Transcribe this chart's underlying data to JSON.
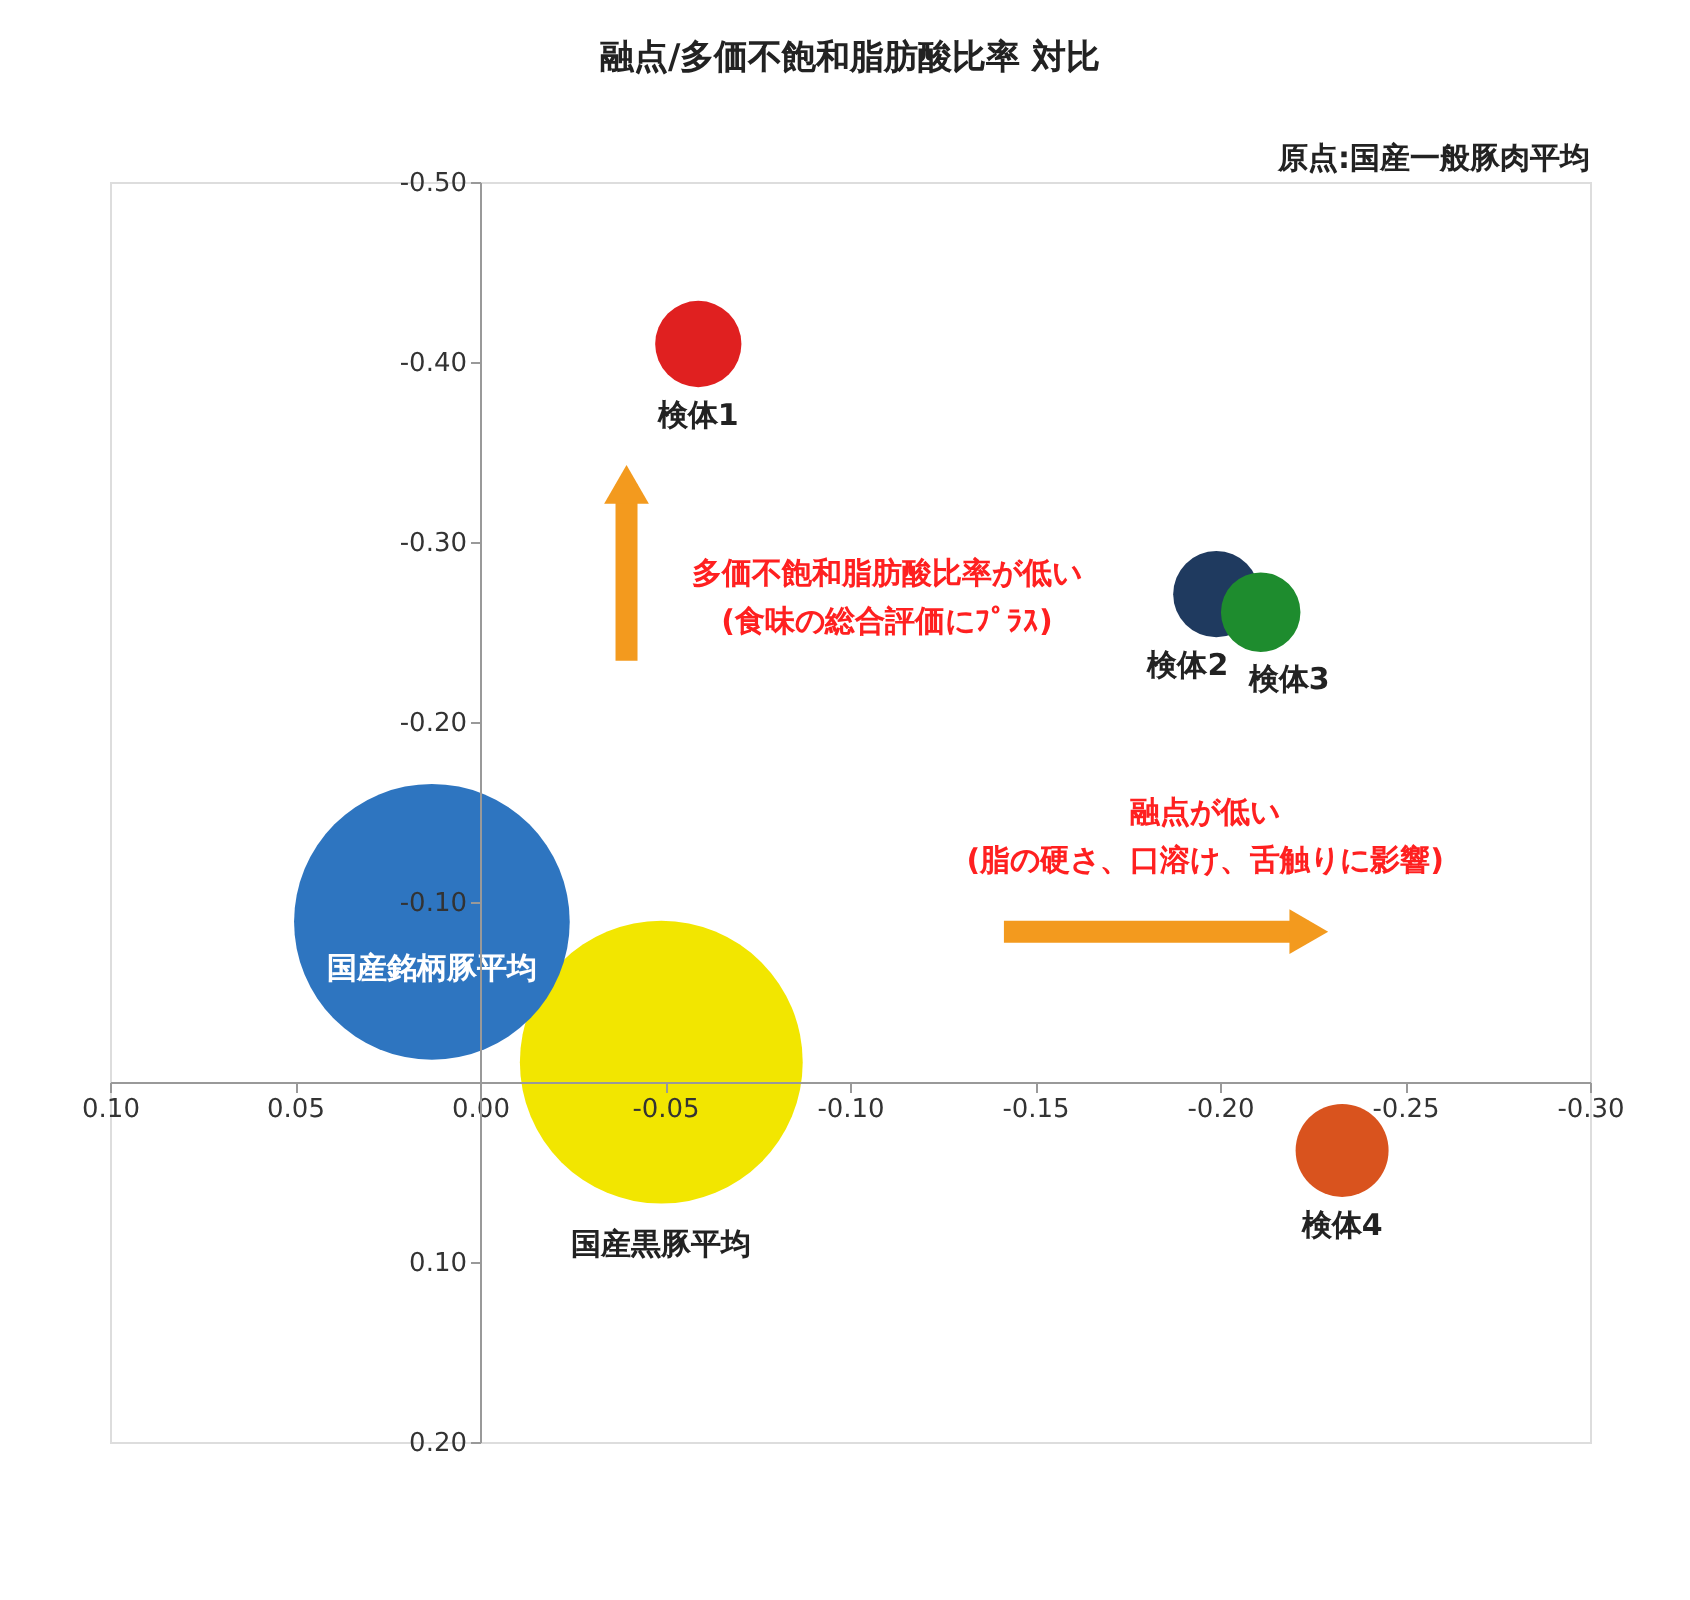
{
  "chart_data": {
    "type": "bubble",
    "title": "融点/多価不飽和脂肪酸比率  対比",
    "xlim": [
      0.1,
      -0.3
    ],
    "ylim": [
      0.2,
      -0.5
    ],
    "xticks": [
      {
        "value": 0.1,
        "label": "0.10"
      },
      {
        "value": 0.05,
        "label": "0.05"
      },
      {
        "value": 0,
        "label": "0.00"
      },
      {
        "value": -0.05,
        "label": "-0.05"
      },
      {
        "value": -0.1,
        "label": "-0.10"
      },
      {
        "value": -0.15,
        "label": "-0.15"
      },
      {
        "value": -0.2,
        "label": "-0.20"
      },
      {
        "value": -0.25,
        "label": "-0.25"
      },
      {
        "value": -0.3,
        "label": "-0.30"
      }
    ],
    "yticks": [
      {
        "value": -0.5,
        "label": "-0.50"
      },
      {
        "value": -0.4,
        "label": "-0.40"
      },
      {
        "value": -0.3,
        "label": "-0.30"
      },
      {
        "value": -0.2,
        "label": "-0.20"
      },
      {
        "value": -0.1,
        "label": "-0.10"
      },
      {
        "value": 0,
        "label": null
      },
      {
        "value": 0.1,
        "label": "0.10"
      },
      {
        "value": 0.2,
        "label": "0.20"
      }
    ],
    "grid": false,
    "legend": false,
    "marker": "circle",
    "series": [
      {
        "name": "検体1",
        "color": "#e02020",
        "x": [
          -0.059
        ],
        "values": [
          -0.41
        ],
        "sizes": [
          0.093
        ]
      },
      {
        "name": "検体2",
        "color": "#1f3a5f",
        "x": [
          -0.199
        ],
        "values": [
          -0.271
        ],
        "sizes": [
          0.093
        ]
      },
      {
        "name": "検体3",
        "color": "#1e8c2e",
        "x": [
          -0.211
        ],
        "values": [
          -0.261
        ],
        "sizes": [
          0.079
        ]
      },
      {
        "name": "検体4",
        "color": "#d9531e",
        "x": [
          -0.233
        ],
        "values": [
          0.038
        ],
        "sizes": [
          0.108
        ]
      },
      {
        "name": "国産銘柄豚平均",
        "color": "#2e75c0",
        "x": [
          0.013
        ],
        "values": [
          -0.089
        ],
        "sizes": [
          0.95
        ]
      },
      {
        "name": "国産黒豚平均",
        "color": "#f2e600",
        "x": [
          -0.049
        ],
        "values": [
          -0.011
        ],
        "sizes": [
          1
        ]
      }
    ],
    "annotations": [
      "原点:国産一般豚肉平均",
      "多価不飽和脂肪酸比率が低い\n(食味の総合評価にﾌﾟﾗｽ)",
      "融点が低い\n(脂の硬さ、口溶け、舌触りに影響)"
    ]
  }
}
